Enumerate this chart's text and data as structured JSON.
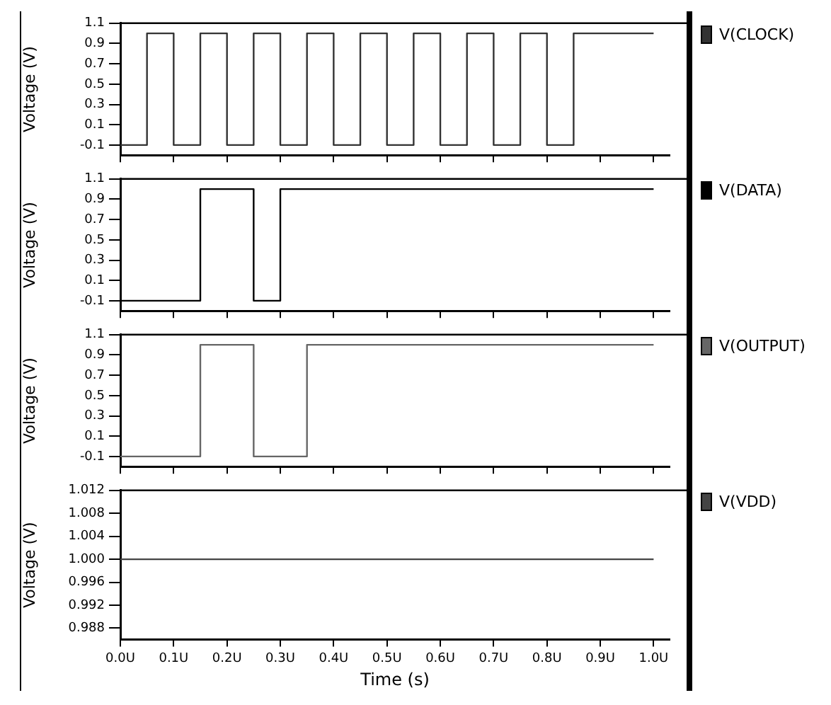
{
  "chart_data": [
    {
      "type": "step",
      "ylabel": "Voltage (V)",
      "x": [
        0,
        0.05,
        0.1,
        0.15,
        0.2,
        0.25,
        0.3,
        0.35,
        0.4,
        0.45,
        0.5,
        0.55,
        0.6,
        0.65,
        0.7,
        0.75,
        0.8,
        0.85,
        1.0
      ],
      "series": [
        {
          "name": "V(CLOCK)",
          "color": "#333333",
          "values": [
            -0.1,
            1.0,
            -0.1,
            1.0,
            -0.1,
            1.0,
            -0.1,
            1.0,
            -0.1,
            1.0,
            -0.1,
            1.0,
            -0.1,
            1.0,
            -0.1,
            1.0,
            -0.1,
            1.0,
            1.0
          ]
        }
      ],
      "xlim": [
        0,
        1.03
      ],
      "xticks": [
        0,
        0.1,
        0.2,
        0.3,
        0.4,
        0.5,
        0.6,
        0.7,
        0.8,
        0.9,
        1.0
      ],
      "ylim": [
        -0.2,
        1.1
      ],
      "yticks": [
        -0.1,
        0.1,
        0.3,
        0.5,
        0.7,
        0.9,
        1.1
      ],
      "legend": "right",
      "tick_labels": "y",
      "marker": "none"
    },
    {
      "type": "step",
      "ylabel": "Voltage (V)",
      "x": [
        0,
        0.15,
        0.25,
        0.3,
        1.0
      ],
      "series": [
        {
          "name": "V(DATA)",
          "color": "#000000",
          "values": [
            -0.1,
            1.0,
            -0.1,
            1.0,
            1.0
          ]
        }
      ],
      "xlim": [
        0,
        1.03
      ],
      "xticks": [
        0,
        0.1,
        0.2,
        0.3,
        0.4,
        0.5,
        0.6,
        0.7,
        0.8,
        0.9,
        1.0
      ],
      "ylim": [
        -0.2,
        1.1
      ],
      "yticks": [
        -0.1,
        0.1,
        0.3,
        0.5,
        0.7,
        0.9,
        1.1
      ],
      "legend": "right",
      "tick_labels": "y",
      "marker": "none"
    },
    {
      "type": "step",
      "ylabel": "Voltage (V)",
      "x": [
        0,
        0.15,
        0.25,
        0.35,
        1.0
      ],
      "series": [
        {
          "name": "V(OUTPUT)",
          "color": "#666666",
          "values": [
            -0.1,
            1.0,
            -0.1,
            1.0,
            1.0
          ]
        }
      ],
      "xlim": [
        0,
        1.03
      ],
      "xticks": [
        0,
        0.1,
        0.2,
        0.3,
        0.4,
        0.5,
        0.6,
        0.7,
        0.8,
        0.9,
        1.0
      ],
      "ylim": [
        -0.2,
        1.1
      ],
      "yticks": [
        -0.1,
        0.1,
        0.3,
        0.5,
        0.7,
        0.9,
        1.1
      ],
      "legend": "right",
      "tick_labels": "y",
      "marker": "none"
    },
    {
      "type": "step",
      "ylabel": "Voltage (V)",
      "xlabel": "Time (s)",
      "x": [
        0,
        1.0
      ],
      "series": [
        {
          "name": "V(VDD)",
          "color": "#444444",
          "values": [
            1.0,
            1.0
          ]
        }
      ],
      "xlim": [
        0,
        1.03
      ],
      "xticks": [
        {
          "value": 0,
          "label": "0.0U"
        },
        {
          "value": 0.1,
          "label": "0.1U"
        },
        {
          "value": 0.2,
          "label": "0.2U"
        },
        {
          "value": 0.3,
          "label": "0.3U"
        },
        {
          "value": 0.4,
          "label": "0.4U"
        },
        {
          "value": 0.5,
          "label": "0.5U"
        },
        {
          "value": 0.6,
          "label": "0.6U"
        },
        {
          "value": 0.7,
          "label": "0.7U"
        },
        {
          "value": 0.8,
          "label": "0.8U"
        },
        {
          "value": 0.9,
          "label": "0.9U"
        },
        {
          "value": 1.0,
          "label": "1.0U"
        }
      ],
      "ylim": [
        0.986,
        1.012
      ],
      "yticks": [
        0.988,
        0.992,
        0.996,
        {
          "value": 1.0,
          "label": "1.000"
        },
        1.004,
        1.008,
        1.012
      ],
      "legend": "right",
      "marker": "none"
    }
  ]
}
